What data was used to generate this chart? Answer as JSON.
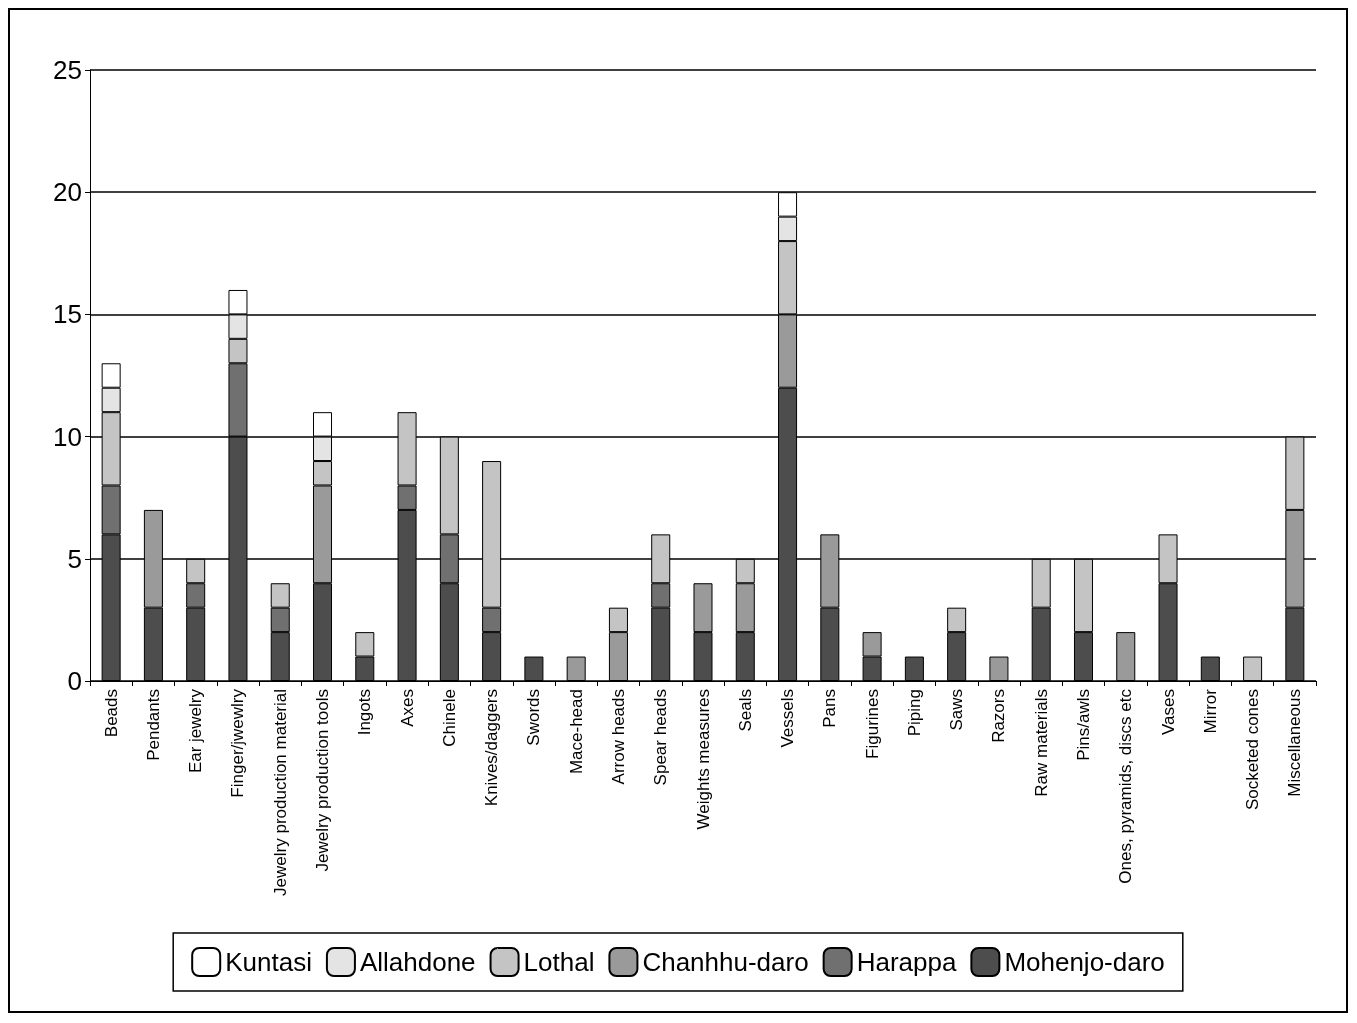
{
  "chart_data": {
    "type": "bar",
    "stacked": true,
    "categories": [
      "Beads",
      "Pendants",
      "Ear jewelry",
      "Finger/jwewlry",
      "Jewelry production material",
      "Jewelry production tools",
      "Ingots",
      "Axes",
      "Chinele",
      "Knives/daggers",
      "Swords",
      "Mace-head",
      "Arrow heads",
      "Spear heads",
      "Weights measures",
      "Seals",
      "Vessels",
      "Pans",
      "Figurines",
      "Piping",
      "Saws",
      "Razors",
      "Raw materials",
      "Pins/awls",
      "Ones, pyramids, discs etc",
      "Vases",
      "Mirror",
      "Socketed cones",
      "Miscellaneous"
    ],
    "series": [
      {
        "name": "Mohenjo-daro",
        "color": "#4d4d4d",
        "values": [
          6,
          3,
          3,
          10,
          2,
          4,
          1,
          7,
          4,
          2,
          1,
          0,
          0,
          3,
          2,
          2,
          12,
          3,
          1,
          1,
          2,
          0,
          3,
          2,
          0,
          4,
          1,
          0,
          3
        ]
      },
      {
        "name": "Harappa",
        "color": "#707070",
        "values": [
          2,
          0,
          1,
          3,
          1,
          0,
          0,
          1,
          2,
          1,
          0,
          0,
          0,
          1,
          0,
          0,
          0,
          0,
          0,
          0,
          0,
          0,
          0,
          0,
          0,
          0,
          0,
          0,
          0
        ]
      },
      {
        "name": "Chanhhu-daro",
        "color": "#9a9a9a",
        "values": [
          0,
          4,
          0,
          0,
          0,
          4,
          0,
          0,
          0,
          0,
          0,
          1,
          2,
          0,
          2,
          2,
          3,
          3,
          1,
          0,
          0,
          1,
          0,
          0,
          2,
          0,
          0,
          0,
          4
        ]
      },
      {
        "name": "Lothal",
        "color": "#c4c4c4",
        "values": [
          3,
          0,
          1,
          1,
          1,
          1,
          1,
          3,
          4,
          6,
          0,
          0,
          1,
          2,
          0,
          1,
          3,
          0,
          0,
          0,
          1,
          0,
          2,
          3,
          0,
          2,
          0,
          1,
          3
        ]
      },
      {
        "name": "Allahdone",
        "color": "#e4e4e4",
        "values": [
          1,
          0,
          0,
          1,
          0,
          1,
          0,
          0,
          0,
          0,
          0,
          0,
          0,
          0,
          0,
          0,
          1,
          0,
          0,
          0,
          0,
          0,
          0,
          0,
          0,
          0,
          0,
          0,
          0
        ]
      },
      {
        "name": "Kuntasi",
        "color": "#ffffff",
        "values": [
          1,
          0,
          0,
          1,
          0,
          1,
          0,
          0,
          0,
          0,
          0,
          0,
          0,
          0,
          0,
          0,
          1,
          0,
          0,
          0,
          0,
          0,
          0,
          0,
          0,
          0,
          0,
          0,
          0
        ]
      }
    ],
    "ylim": [
      0,
      25
    ],
    "yticks": [
      0,
      5,
      10,
      15,
      20,
      25
    ],
    "grid": "y",
    "legend": "bottom"
  }
}
